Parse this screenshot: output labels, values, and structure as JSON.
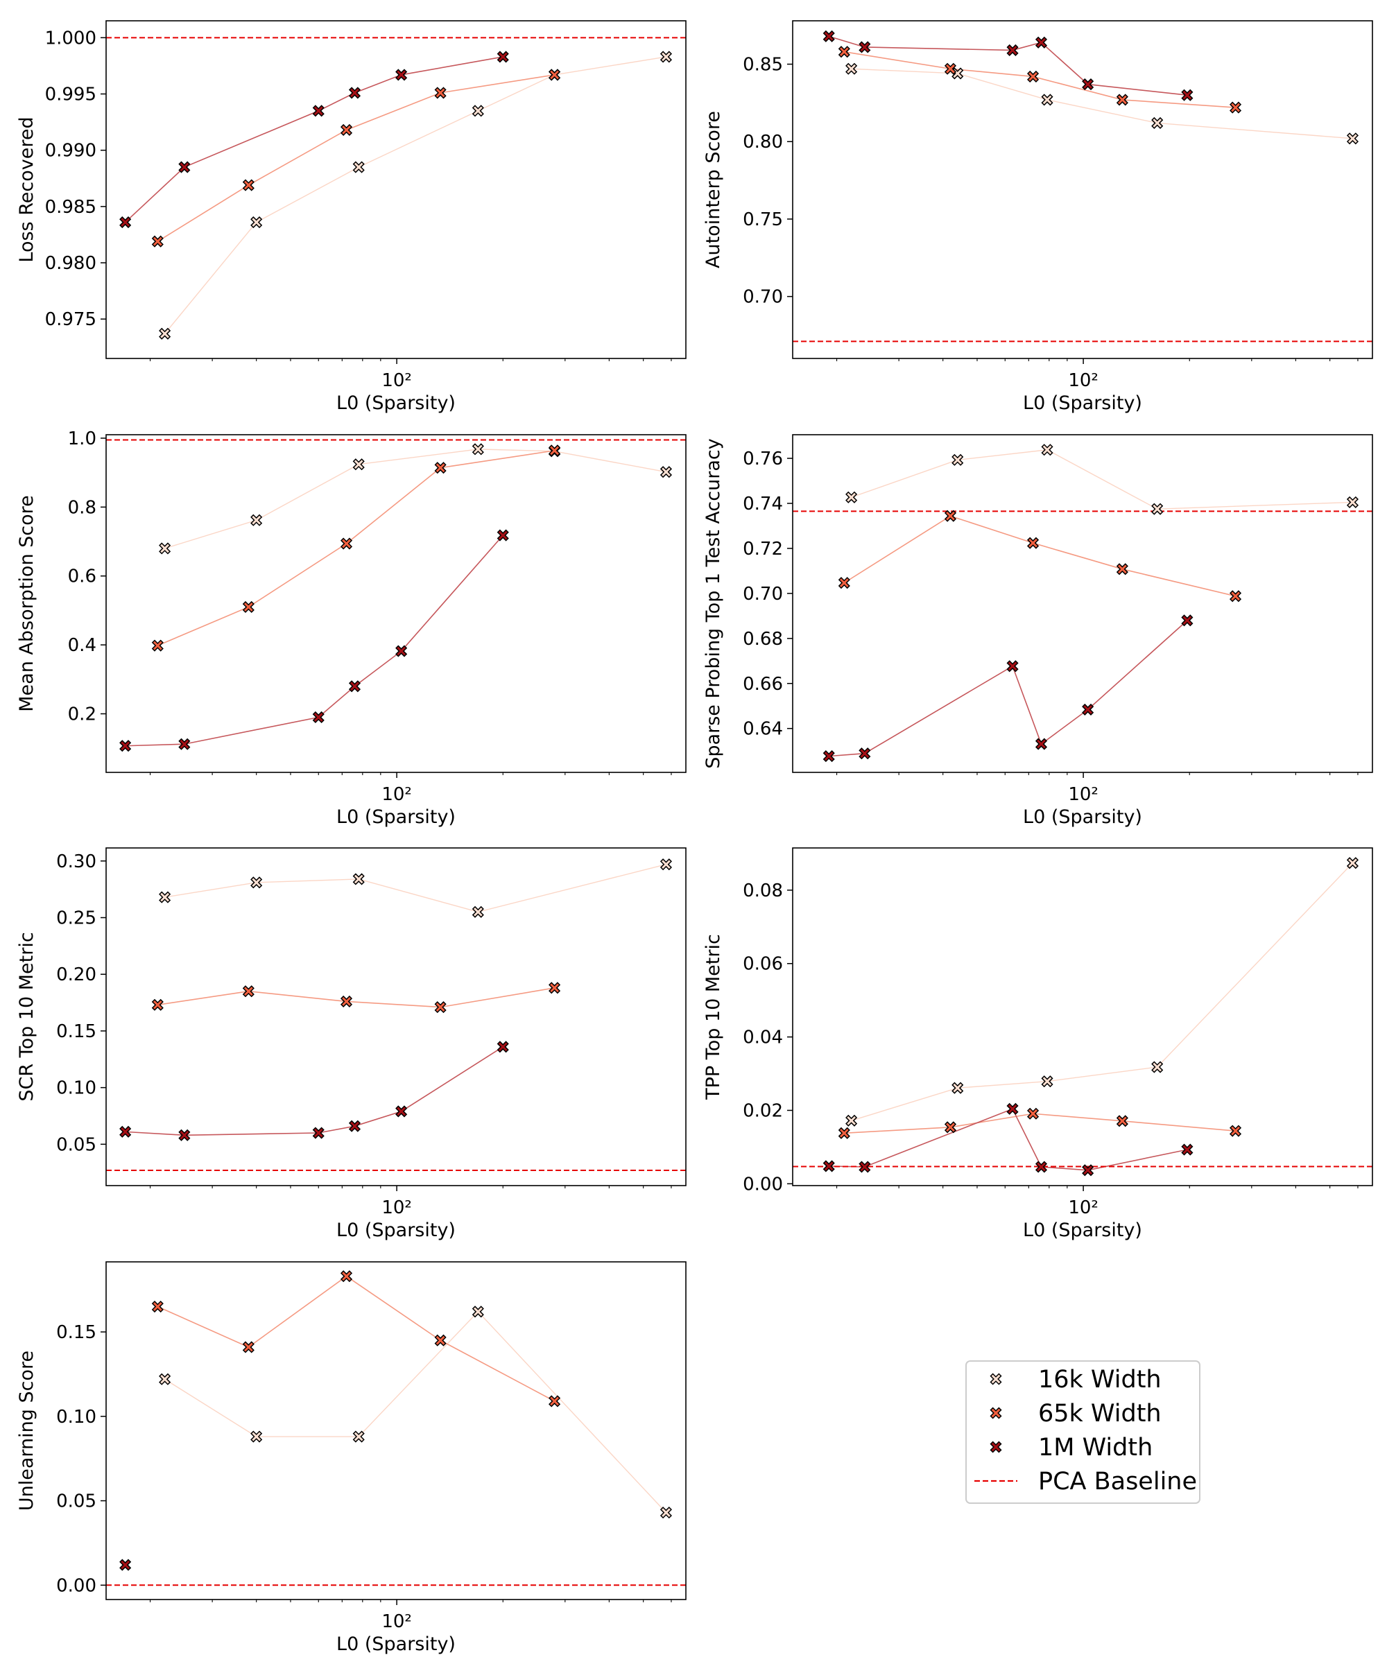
{
  "colors": {
    "w16k_fill": "#fde0d2",
    "w65k_fill": "#f2603f",
    "w1m_fill": "#a50f15",
    "w16k_line": "#fbd6c6",
    "w65k_line": "#f59a82",
    "w1m_line": "#c6575b",
    "baseline": "#e60000",
    "marker_edge": "#000000"
  },
  "legend": {
    "entries": [
      {
        "key": "w16k",
        "label": "16k Width"
      },
      {
        "key": "w65k",
        "label": "65k Width"
      },
      {
        "key": "w1m",
        "label": "1M Width"
      },
      {
        "key": "baseline",
        "label": "PCA Baseline"
      }
    ]
  },
  "chart_data": [
    {
      "id": "loss",
      "type": "line",
      "xscale": "log",
      "xlabel": "L0 (Sparsity)",
      "ylabel": "Loss Recovered",
      "xlim": [
        15,
        660
      ],
      "ylim": [
        0.9715,
        1.0015
      ],
      "yticks": [
        0.975,
        0.98,
        0.985,
        0.99,
        0.995,
        1.0
      ],
      "ytick_labels": [
        "0.975",
        "0.980",
        "0.985",
        "0.990",
        "0.995",
        "1.000"
      ],
      "xticks": [
        100
      ],
      "xtick_labels": [
        "10²"
      ],
      "baseline": 1.0,
      "series": [
        {
          "name": "16k Width",
          "key": "w16k",
          "x": [
            22,
            40,
            78,
            170,
            280,
            580
          ],
          "y": [
            0.9737,
            0.9836,
            0.9885,
            0.9935,
            0.9967,
            0.9983
          ]
        },
        {
          "name": "65k Width",
          "key": "w65k",
          "x": [
            21,
            38,
            72,
            133,
            280
          ],
          "y": [
            0.9819,
            0.9869,
            0.9918,
            0.9951,
            0.9967
          ]
        },
        {
          "name": "1M Width",
          "key": "w1m",
          "x": [
            17,
            25,
            60,
            76,
            103,
            200
          ],
          "y": [
            0.9836,
            0.9885,
            0.9935,
            0.9951,
            0.9967,
            0.9983
          ]
        }
      ]
    },
    {
      "id": "autointerp",
      "type": "line",
      "xscale": "log",
      "xlabel": "L0 (Sparsity)",
      "ylabel": "Autointerp Score",
      "xlim": [
        15,
        660
      ],
      "ylim": [
        0.66,
        0.878
      ],
      "yticks": [
        0.7,
        0.75,
        0.8,
        0.85
      ],
      "ytick_labels": [
        "0.70",
        "0.75",
        "0.80",
        "0.85"
      ],
      "xticks": [
        100
      ],
      "xtick_labels": [
        "10²"
      ],
      "baseline": 0.671,
      "series": [
        {
          "name": "16k Width",
          "key": "w16k",
          "x": [
            22,
            44,
            79,
            162,
            580
          ],
          "y": [
            0.847,
            0.844,
            0.827,
            0.812,
            0.802
          ]
        },
        {
          "name": "65k Width",
          "key": "w65k",
          "x": [
            21,
            42,
            72,
            129,
            270
          ],
          "y": [
            0.858,
            0.847,
            0.842,
            0.827,
            0.822
          ]
        },
        {
          "name": "1M Width",
          "key": "w1m",
          "x": [
            19,
            24,
            63,
            76,
            103,
            197
          ],
          "y": [
            0.868,
            0.861,
            0.859,
            0.864,
            0.837,
            0.83
          ]
        }
      ]
    },
    {
      "id": "absorption",
      "type": "line",
      "xscale": "log",
      "xlabel": "L0 (Sparsity)",
      "ylabel": "Mean Absorption Score",
      "xlim": [
        15,
        660
      ],
      "ylim": [
        0.03,
        1.01
      ],
      "yticks": [
        0.2,
        0.4,
        0.6,
        0.8,
        1.0
      ],
      "ytick_labels": [
        "0.2",
        "0.4",
        "0.6",
        "0.8",
        "1.0"
      ],
      "xticks": [
        100
      ],
      "xtick_labels": [
        "10²"
      ],
      "baseline": 0.995,
      "series": [
        {
          "name": "16k Width",
          "key": "w16k",
          "x": [
            22,
            40,
            78,
            170,
            280,
            580
          ],
          "y": [
            0.68,
            0.762,
            0.924,
            0.968,
            0.962,
            0.902
          ]
        },
        {
          "name": "65k Width",
          "key": "w65k",
          "x": [
            21,
            38,
            72,
            133,
            280
          ],
          "y": [
            0.398,
            0.51,
            0.694,
            0.914,
            0.964
          ]
        },
        {
          "name": "1M Width",
          "key": "w1m",
          "x": [
            17,
            25,
            60,
            76,
            103,
            200
          ],
          "y": [
            0.107,
            0.112,
            0.19,
            0.28,
            0.382,
            0.718
          ]
        }
      ]
    },
    {
      "id": "sparse_probing",
      "type": "line",
      "xscale": "log",
      "xlabel": "L0 (Sparsity)",
      "ylabel": "Sparse Probing Top 1 Test Accuracy",
      "xlim": [
        15,
        660
      ],
      "ylim": [
        0.6205,
        0.7705
      ],
      "yticks": [
        0.64,
        0.66,
        0.68,
        0.7,
        0.72,
        0.74,
        0.76
      ],
      "ytick_labels": [
        "0.64",
        "0.66",
        "0.68",
        "0.70",
        "0.72",
        "0.74",
        "0.76"
      ],
      "xticks": [
        100
      ],
      "xtick_labels": [
        "10²"
      ],
      "baseline": 0.7365,
      "series": [
        {
          "name": "16k Width",
          "key": "w16k",
          "x": [
            22,
            44,
            79,
            162,
            580
          ],
          "y": [
            0.7427,
            0.7593,
            0.7638,
            0.7375,
            0.7405
          ]
        },
        {
          "name": "65k Width",
          "key": "w65k",
          "x": [
            21,
            42,
            72,
            129,
            270
          ],
          "y": [
            0.7047,
            0.7344,
            0.7224,
            0.7108,
            0.6988
          ]
        },
        {
          "name": "1M Width",
          "key": "w1m",
          "x": [
            19,
            24,
            63,
            76,
            103,
            197
          ],
          "y": [
            0.6277,
            0.6289,
            0.6677,
            0.6331,
            0.6484,
            0.688
          ]
        }
      ]
    },
    {
      "id": "scr",
      "type": "line",
      "xscale": "log",
      "xlabel": "L0 (Sparsity)",
      "ylabel": "SCR Top 10 Metric",
      "xlim": [
        15,
        660
      ],
      "ylim": [
        0.0135,
        0.3115
      ],
      "yticks": [
        0.05,
        0.1,
        0.15,
        0.2,
        0.25,
        0.3
      ],
      "ytick_labels": [
        "0.05",
        "0.10",
        "0.15",
        "0.20",
        "0.25",
        "0.30"
      ],
      "xticks": [
        100
      ],
      "xtick_labels": [
        "10²"
      ],
      "baseline": 0.027,
      "series": [
        {
          "name": "16k Width",
          "key": "w16k",
          "x": [
            22,
            40,
            78,
            170,
            580
          ],
          "y": [
            0.268,
            0.281,
            0.284,
            0.255,
            0.297
          ]
        },
        {
          "name": "65k Width",
          "key": "w65k",
          "x": [
            21,
            38,
            72,
            133,
            280
          ],
          "y": [
            0.173,
            0.185,
            0.176,
            0.171,
            0.188
          ]
        },
        {
          "name": "1M Width",
          "key": "w1m",
          "x": [
            17,
            25,
            60,
            76,
            103,
            200
          ],
          "y": [
            0.061,
            0.058,
            0.06,
            0.066,
            0.079,
            0.136
          ]
        }
      ]
    },
    {
      "id": "tpp",
      "type": "line",
      "xscale": "log",
      "xlabel": "L0 (Sparsity)",
      "ylabel": "TPP Top 10 Metric",
      "xlim": [
        15,
        660
      ],
      "ylim": [
        -0.0005,
        0.0915
      ],
      "yticks": [
        0.0,
        0.02,
        0.04,
        0.06,
        0.08
      ],
      "ytick_labels": [
        "0.00",
        "0.02",
        "0.04",
        "0.06",
        "0.08"
      ],
      "xticks": [
        100
      ],
      "xtick_labels": [
        "10²"
      ],
      "baseline": 0.0047,
      "series": [
        {
          "name": "16k Width",
          "key": "w16k",
          "x": [
            22,
            44,
            79,
            162,
            580
          ],
          "y": [
            0.0172,
            0.0261,
            0.0279,
            0.0318,
            0.0874
          ]
        },
        {
          "name": "65k Width",
          "key": "w65k",
          "x": [
            21,
            42,
            72,
            129,
            270
          ],
          "y": [
            0.0138,
            0.0154,
            0.0191,
            0.0171,
            0.0144
          ]
        },
        {
          "name": "1M Width",
          "key": "w1m",
          "x": [
            19,
            24,
            63,
            76,
            103,
            197
          ],
          "y": [
            0.0048,
            0.0046,
            0.0204,
            0.0046,
            0.0037,
            0.0093
          ]
        }
      ]
    },
    {
      "id": "unlearning",
      "type": "line",
      "xscale": "log",
      "xlabel": "L0 (Sparsity)",
      "ylabel": "Unlearning Score",
      "xlim": [
        15,
        660
      ],
      "ylim": [
        -0.0085,
        0.1915
      ],
      "yticks": [
        0.0,
        0.05,
        0.1,
        0.15
      ],
      "ytick_labels": [
        "0.00",
        "0.05",
        "0.10",
        "0.15"
      ],
      "xticks": [
        100
      ],
      "xtick_labels": [
        "10²"
      ],
      "baseline": 0.0,
      "series": [
        {
          "name": "16k Width",
          "key": "w16k",
          "x": [
            22,
            40,
            78,
            170,
            580
          ],
          "y": [
            0.122,
            0.088,
            0.088,
            0.162,
            0.043
          ]
        },
        {
          "name": "65k Width",
          "key": "w65k",
          "x": [
            21,
            38,
            72,
            133,
            280
          ],
          "y": [
            0.165,
            0.141,
            0.183,
            0.145,
            0.109
          ]
        },
        {
          "name": "1M Width",
          "key": "w1m",
          "x": [
            17
          ],
          "y": [
            0.012
          ]
        }
      ]
    }
  ]
}
